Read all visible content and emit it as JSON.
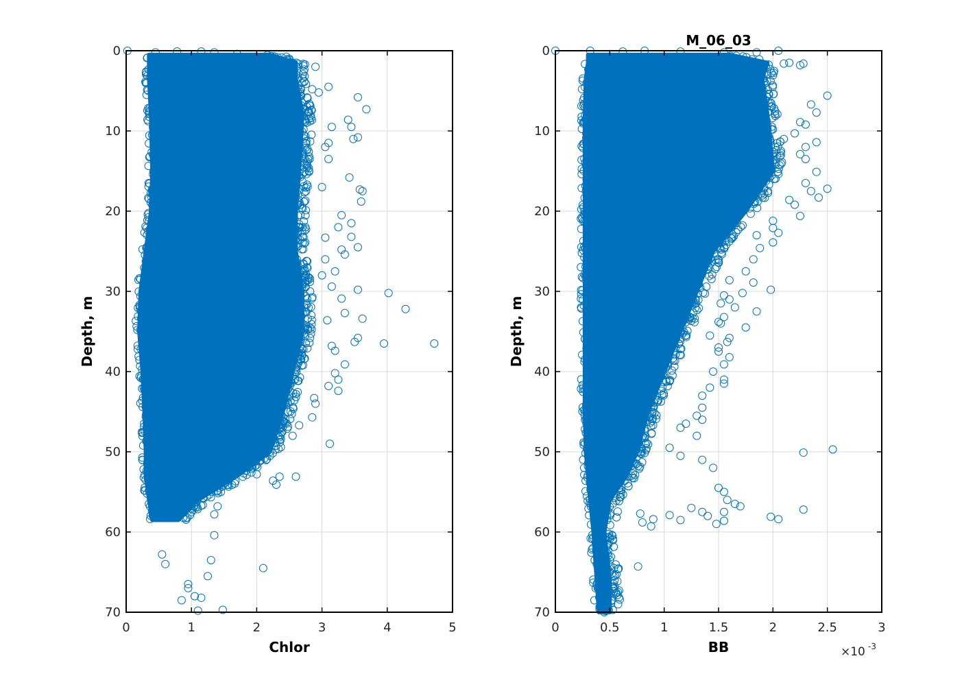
{
  "figure": {
    "background": "#ffffff",
    "marker_color": "#0072bd"
  },
  "chart_data": [
    {
      "type": "scatter",
      "title": "",
      "xlabel": "Chlor",
      "ylabel": "Depth, m",
      "xlim": [
        0,
        5
      ],
      "ylim": [
        0,
        70
      ],
      "y_reversed": true,
      "grid": true,
      "marker": "open-circle",
      "color": "#0072bd",
      "xticks": [
        0,
        1,
        2,
        3,
        4,
        5
      ],
      "xtick_labels": [
        "0",
        "1",
        "2",
        "3",
        "4",
        "5"
      ],
      "yticks": [
        0,
        10,
        20,
        30,
        40,
        50,
        60,
        70
      ],
      "ytick_labels": [
        "0",
        "10",
        "20",
        "30",
        "40",
        "50",
        "60",
        "70"
      ],
      "x_multiplier": "",
      "x_multiplier_exp": "",
      "points": [
        [
          0.02,
          0.0
        ],
        [
          0.45,
          0.2
        ],
        [
          0.78,
          0.1
        ],
        [
          1.15,
          0.1
        ],
        [
          1.35,
          0.2
        ],
        [
          1.7,
          0.4
        ],
        [
          2.45,
          1.4
        ],
        [
          2.9,
          2.0
        ],
        [
          2.55,
          1.5
        ],
        [
          3.1,
          4.5
        ],
        [
          2.85,
          4.8
        ],
        [
          2.95,
          5.2
        ],
        [
          3.55,
          5.8
        ],
        [
          3.68,
          7.3
        ],
        [
          3.4,
          8.6
        ],
        [
          3.45,
          9.5
        ],
        [
          3.15,
          9.5
        ],
        [
          3.48,
          11.0
        ],
        [
          3.55,
          10.8
        ],
        [
          3.1,
          11.5
        ],
        [
          3.05,
          12.0
        ],
        [
          3.1,
          13.5
        ],
        [
          3.42,
          15.8
        ],
        [
          3.58,
          17.3
        ],
        [
          3.62,
          17.5
        ],
        [
          3.6,
          18.8
        ],
        [
          3.0,
          17.0
        ],
        [
          3.3,
          20.5
        ],
        [
          3.45,
          21.5
        ],
        [
          3.25,
          22.0
        ],
        [
          3.45,
          23.2
        ],
        [
          3.05,
          23.3
        ],
        [
          3.55,
          24.5
        ],
        [
          3.3,
          24.8
        ],
        [
          3.35,
          25.4
        ],
        [
          3.05,
          26.0
        ],
        [
          3.2,
          27.5
        ],
        [
          3.0,
          28.0
        ],
        [
          3.15,
          29.4
        ],
        [
          3.55,
          29.8
        ],
        [
          4.02,
          30.2
        ],
        [
          3.3,
          30.9
        ],
        [
          4.28,
          32.2
        ],
        [
          3.35,
          32.7
        ],
        [
          3.62,
          33.4
        ],
        [
          3.08,
          33.6
        ],
        [
          3.5,
          36.3
        ],
        [
          3.55,
          35.8
        ],
        [
          3.95,
          36.5
        ],
        [
          4.72,
          36.5
        ],
        [
          3.15,
          36.8
        ],
        [
          3.2,
          37.4
        ],
        [
          3.35,
          39.1
        ],
        [
          3.2,
          40.2
        ],
        [
          3.25,
          41.0
        ],
        [
          3.1,
          41.8
        ],
        [
          3.25,
          42.4
        ],
        [
          2.88,
          43.3
        ],
        [
          2.9,
          44.0
        ],
        [
          2.85,
          45.7
        ],
        [
          3.12,
          49.0
        ],
        [
          2.65,
          46.7
        ],
        [
          2.55,
          48.0
        ],
        [
          2.6,
          53.1
        ],
        [
          2.35,
          53.1
        ],
        [
          2.25,
          53.6
        ],
        [
          2.3,
          54.1
        ],
        [
          2.0,
          52.8
        ],
        [
          1.15,
          56.7
        ],
        [
          1.4,
          56.8
        ],
        [
          1.35,
          57.8
        ],
        [
          1.35,
          60.4
        ],
        [
          1.3,
          63.5
        ],
        [
          2.1,
          64.5
        ],
        [
          0.55,
          62.8
        ],
        [
          0.6,
          64.0
        ],
        [
          0.95,
          66.5
        ],
        [
          1.25,
          65.5
        ],
        [
          1.05,
          68.0
        ],
        [
          1.15,
          68.2
        ],
        [
          0.85,
          68.5
        ],
        [
          1.1,
          69.8
        ],
        [
          1.48,
          69.7
        ],
        [
          0.95,
          67.0
        ]
      ]
    },
    {
      "type": "scatter",
      "title": "M_06_03",
      "xlabel": "BB",
      "ylabel": "Depth, m",
      "xlim": [
        0,
        3
      ],
      "ylim": [
        0,
        70
      ],
      "y_reversed": true,
      "grid": true,
      "marker": "open-circle",
      "color": "#0072bd",
      "xticks": [
        0,
        0.5,
        1,
        1.5,
        2,
        2.5,
        3
      ],
      "xtick_labels": [
        "0",
        "0.5",
        "1",
        "1.5",
        "2",
        "2.5",
        "3"
      ],
      "yticks": [
        0,
        10,
        20,
        30,
        40,
        50,
        60,
        70
      ],
      "ytick_labels": [
        "0",
        "10",
        "20",
        "30",
        "40",
        "50",
        "60",
        "70"
      ],
      "x_multiplier": "×10",
      "x_multiplier_exp": "-3",
      "points": [
        [
          0.0,
          0.0
        ],
        [
          0.32,
          0.0
        ],
        [
          0.62,
          0.1
        ],
        [
          0.82,
          0.0
        ],
        [
          1.15,
          0.1
        ],
        [
          1.55,
          0.2
        ],
        [
          1.85,
          0.2
        ],
        [
          2.05,
          0.0
        ],
        [
          2.15,
          1.5
        ],
        [
          2.25,
          1.8
        ],
        [
          2.28,
          1.6
        ],
        [
          2.1,
          1.6
        ],
        [
          1.9,
          1.6
        ],
        [
          2.5,
          5.6
        ],
        [
          2.35,
          6.7
        ],
        [
          2.4,
          7.7
        ],
        [
          2.25,
          8.9
        ],
        [
          2.3,
          9.2
        ],
        [
          2.2,
          10.3
        ],
        [
          2.1,
          11.0
        ],
        [
          2.4,
          11.4
        ],
        [
          2.3,
          12.0
        ],
        [
          2.25,
          12.9
        ],
        [
          2.3,
          13.5
        ],
        [
          2.4,
          15.1
        ],
        [
          2.3,
          16.5
        ],
        [
          2.5,
          17.2
        ],
        [
          2.35,
          17.5
        ],
        [
          2.42,
          18.3
        ],
        [
          2.15,
          18.6
        ],
        [
          2.2,
          19.2
        ],
        [
          2.25,
          20.6
        ],
        [
          2.0,
          21.2
        ],
        [
          2.0,
          22.1
        ],
        [
          2.05,
          22.7
        ],
        [
          2.0,
          23.9
        ],
        [
          1.85,
          23.0
        ],
        [
          1.88,
          24.6
        ],
        [
          1.82,
          26.0
        ],
        [
          1.75,
          27.5
        ],
        [
          1.6,
          28.6
        ],
        [
          1.82,
          28.9
        ],
        [
          1.98,
          29.8
        ],
        [
          1.72,
          30.2
        ],
        [
          1.55,
          30.5
        ],
        [
          1.6,
          31.0
        ],
        [
          1.52,
          31.5
        ],
        [
          1.65,
          32.0
        ],
        [
          1.85,
          32.5
        ],
        [
          1.55,
          33.2
        ],
        [
          1.5,
          33.8
        ],
        [
          1.52,
          34.0
        ],
        [
          1.75,
          34.5
        ],
        [
          1.42,
          35.5
        ],
        [
          1.6,
          35.8
        ],
        [
          1.58,
          36.3
        ],
        [
          1.5,
          37.0
        ],
        [
          1.5,
          37.5
        ],
        [
          1.6,
          38.2
        ],
        [
          1.55,
          39.1
        ],
        [
          1.45,
          40.0
        ],
        [
          1.55,
          41.0
        ],
        [
          1.55,
          41.5
        ],
        [
          1.42,
          42.0
        ],
        [
          1.35,
          43.0
        ],
        [
          1.35,
          44.5
        ],
        [
          1.3,
          45.5
        ],
        [
          1.35,
          46.0
        ],
        [
          1.2,
          46.5
        ],
        [
          1.15,
          47.0
        ],
        [
          1.3,
          48.0
        ],
        [
          1.05,
          49.5
        ],
        [
          1.15,
          50.5
        ],
        [
          2.28,
          50.1
        ],
        [
          2.55,
          49.7
        ],
        [
          1.35,
          51.0
        ],
        [
          1.45,
          52.0
        ],
        [
          1.5,
          54.5
        ],
        [
          1.55,
          55.0
        ],
        [
          1.58,
          56.0
        ],
        [
          1.65,
          56.5
        ],
        [
          1.7,
          56.8
        ],
        [
          1.35,
          57.5
        ],
        [
          1.55,
          57.5
        ],
        [
          1.4,
          58.0
        ],
        [
          1.55,
          58.6
        ],
        [
          1.48,
          59.0
        ],
        [
          1.25,
          57.0
        ],
        [
          1.15,
          58.5
        ],
        [
          1.05,
          57.9
        ],
        [
          0.9,
          58.4
        ],
        [
          0.88,
          59.3
        ],
        [
          0.8,
          58.8
        ],
        [
          0.78,
          57.7
        ],
        [
          1.98,
          58.1
        ],
        [
          2.05,
          58.4
        ],
        [
          2.28,
          57.2
        ],
        [
          0.76,
          64.3
        ],
        [
          0.45,
          67.0
        ],
        [
          0.42,
          68.5
        ],
        [
          0.45,
          69.5
        ],
        [
          0.45,
          70.0
        ],
        [
          0.38,
          64.0
        ],
        [
          0.5,
          65.0
        ],
        [
          0.48,
          66.0
        ],
        [
          0.4,
          62.5
        ],
        [
          0.5,
          63.5
        ]
      ]
    }
  ]
}
